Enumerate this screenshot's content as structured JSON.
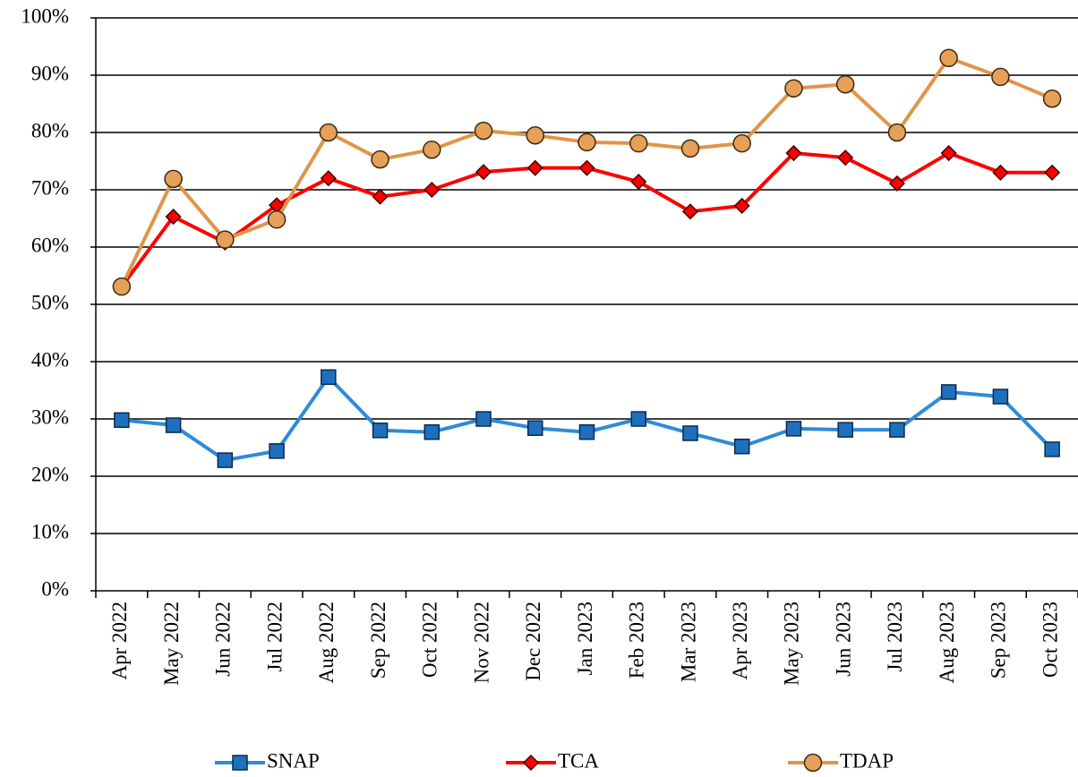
{
  "chart_data": {
    "type": "line",
    "categories": [
      "Apr 2022",
      "May 2022",
      "Jun 2022",
      "Jul 2022",
      "Aug 2022",
      "Sep 2022",
      "Oct 2022",
      "Nov 2022",
      "Dec 2022",
      "Jan 2023",
      "Feb 2023",
      "Mar 2023",
      "Apr 2023",
      "May 2023",
      "Jun 2023",
      "Jul 2023",
      "Aug 2023",
      "Sep 2023",
      "Oct 2023"
    ],
    "series": [
      {
        "name": "SNAP",
        "color": "#2e8bd8",
        "marker": "square",
        "marker_color": "#1f6fbf",
        "values": [
          29.8,
          28.9,
          22.8,
          24.4,
          37.3,
          28.0,
          27.7,
          30.0,
          28.4,
          27.7,
          30.0,
          27.5,
          25.2,
          28.3,
          28.1,
          28.1,
          34.7,
          33.9,
          24.7
        ]
      },
      {
        "name": "TCA",
        "color": "#ff0000",
        "marker": "diamond",
        "marker_color": "#ff0000",
        "values": [
          53.1,
          65.3,
          60.8,
          67.3,
          72.0,
          68.8,
          70.0,
          73.1,
          73.8,
          73.8,
          71.4,
          66.2,
          67.2,
          76.4,
          75.6,
          71.1,
          76.4,
          73.0,
          73.0
        ]
      },
      {
        "name": "TDAP",
        "color": "#e0954a",
        "marker": "circle",
        "marker_color": "#e6a05a",
        "values": [
          53.1,
          71.9,
          61.3,
          64.8,
          80.0,
          75.3,
          77.0,
          80.3,
          79.5,
          78.3,
          78.1,
          77.2,
          78.1,
          87.7,
          88.4,
          80.0,
          93.0,
          89.7,
          85.9
        ]
      }
    ],
    "ylim": [
      0,
      100
    ],
    "yticks": [
      {
        "value": 0,
        "label": "0%"
      },
      {
        "value": 10,
        "label": "10%"
      },
      {
        "value": 20,
        "label": "20%"
      },
      {
        "value": 30,
        "label": "30%"
      },
      {
        "value": 40,
        "label": "40%"
      },
      {
        "value": 50,
        "label": "50%"
      },
      {
        "value": 60,
        "label": "60%"
      },
      {
        "value": 70,
        "label": "70%"
      },
      {
        "value": 80,
        "label": "80%"
      },
      {
        "value": 90,
        "label": "90%"
      },
      {
        "value": 100,
        "label": "100%"
      }
    ],
    "grid": true,
    "legend": "bottom"
  }
}
